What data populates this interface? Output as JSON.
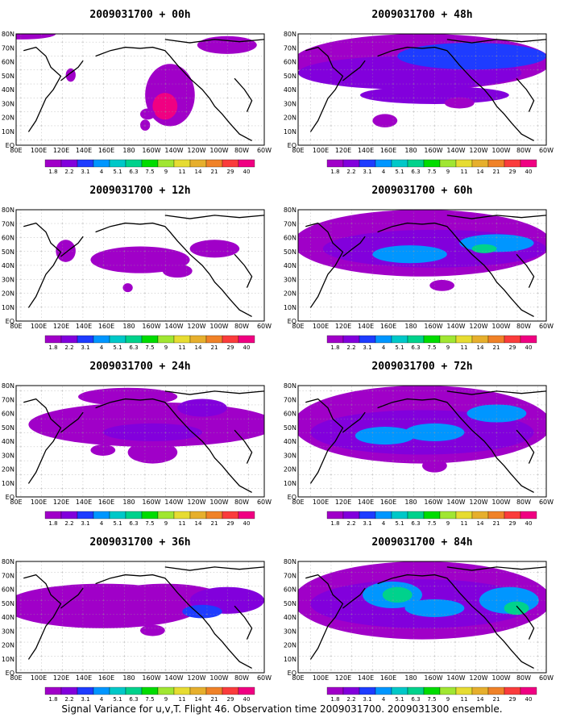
{
  "panels": [
    {
      "title": "2009031700 + 00h"
    },
    {
      "title": "2009031700 + 48h"
    },
    {
      "title": "2009031700 + 12h"
    },
    {
      "title": "2009031700 + 60h"
    },
    {
      "title": "2009031700 + 24h"
    },
    {
      "title": "2009031700 + 72h"
    },
    {
      "title": "2009031700 + 36h"
    },
    {
      "title": "2009031700 + 84h"
    }
  ],
  "axes": {
    "lon_labels": [
      "80E",
      "100E",
      "120E",
      "140E",
      "160E",
      "180",
      "160W",
      "140W",
      "120W",
      "100W",
      "80W",
      "60W"
    ],
    "lat_labels": [
      "80N",
      "70N",
      "60N",
      "50N",
      "40N",
      "30N",
      "20N",
      "10N",
      "EQ"
    ]
  },
  "colorbar": {
    "labels": [
      "1.8",
      "2.2",
      "3.1",
      "4",
      "5.1",
      "6.3",
      "7.5",
      "9",
      "11",
      "14",
      "21",
      "29",
      "40"
    ],
    "colors": [
      "#a000c8",
      "#8200dc",
      "#1e3cff",
      "#0096ff",
      "#00c8c8",
      "#00d28c",
      "#00dc00",
      "#a0e632",
      "#e6dc32",
      "#e6af2d",
      "#f08228",
      "#fa3c3c",
      "#f00082"
    ]
  },
  "footer": "Signal Variance for u,v,T. Flight 46. Observation time 2009031700. 2009031300 ensemble."
}
